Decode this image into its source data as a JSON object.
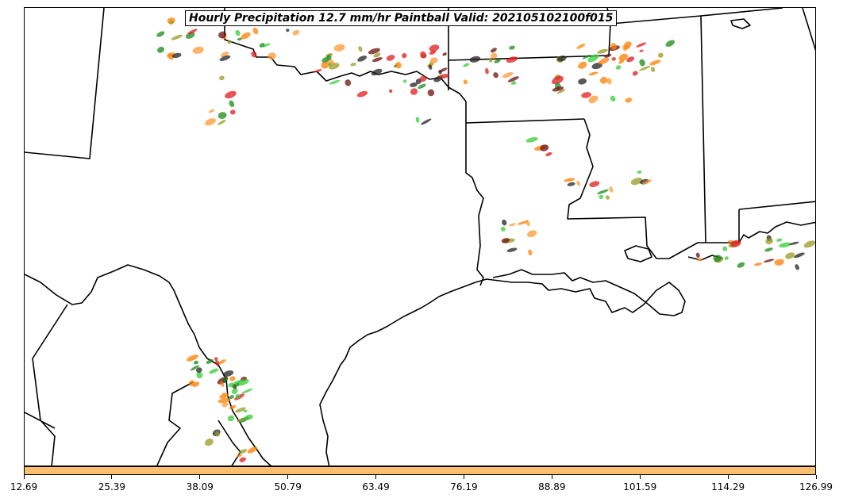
{
  "title": "Hourly Precipitation 12.7 mm/hr Paintball Valid: 202105102100f015",
  "colorbar": {
    "color": "#fdbf6f",
    "tick_labels": [
      "12.69",
      "25.39",
      "38.09",
      "50.79",
      "63.49",
      "76.19",
      "88.89",
      "101.59",
      "114.29",
      "126.99"
    ]
  },
  "paintball_colors": [
    "#e31a1c",
    "#ff7f00",
    "#33cc33",
    "#6b0f0f",
    "#999922",
    "#222222",
    "#ff9933",
    "#1a8a1a"
  ],
  "region": "Texas-Louisiana Gulf Coast"
}
